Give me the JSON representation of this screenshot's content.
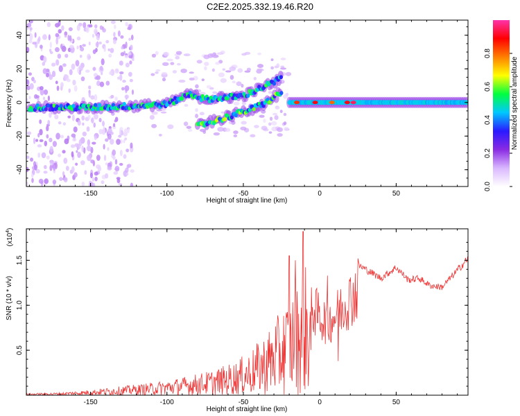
{
  "title": "C2E2.2025.332.19.46.R20",
  "chart_data": [
    {
      "type": "heatmap",
      "xlabel": "Height of straight line (km)",
      "ylabel": "Frequency (Hz)",
      "xlim": [
        -192,
        97
      ],
      "ylim": [
        -50,
        49
      ],
      "x_ticks": [
        -150,
        -100,
        -50,
        0,
        50
      ],
      "y_ticks": [
        -40,
        -20,
        0,
        20,
        40
      ],
      "colorbar": {
        "label": "Normalized spectral amplitude",
        "range": [
          0,
          1
        ],
        "ticks": [
          "0.0",
          "0.2",
          "0.4",
          "0.6",
          "0.8"
        ],
        "tick_values": [
          0,
          0.2,
          0.4,
          0.6,
          0.8
        ],
        "stops": [
          "#ffffff",
          "#d9b7ff",
          "#8a2be2",
          "#2a1aff",
          "#00c8ff",
          "#00ff40",
          "#ffff00",
          "#ff8000",
          "#ff0000",
          "#ff33aa"
        ]
      },
      "ridges": [
        {
          "name": "main",
          "points": [
            [
              -190,
              -3
            ],
            [
              -150,
              -3
            ],
            [
              -120,
              -2
            ],
            [
              -100,
              -1
            ],
            [
              -85,
              5
            ],
            [
              -75,
              2
            ],
            [
              -60,
              3
            ],
            [
              -50,
              4
            ],
            [
              -40,
              8
            ],
            [
              -30,
              12
            ],
            [
              -25,
              15
            ]
          ],
          "amp": 0.45
        },
        {
          "name": "lower",
          "points": [
            [
              -80,
              -14
            ],
            [
              -65,
              -10
            ],
            [
              -55,
              -7
            ],
            [
              -45,
              -4
            ],
            [
              -35,
              0
            ],
            [
              -25,
              6
            ]
          ],
          "amp": 0.5
        },
        {
          "name": "stable",
          "points": [
            [
              -20,
              0
            ],
            [
              0,
              0
            ],
            [
              20,
              0
            ],
            [
              50,
              0
            ],
            [
              97,
              0
            ]
          ],
          "amp": 0.6
        }
      ]
    },
    {
      "type": "line",
      "xlabel": "Height of straight line (km)",
      "ylabel": "SNR (10 * v/v)",
      "scale_label": "(x10",
      "scale_exp": "4",
      "scale_close": ")",
      "xlim": [
        -192,
        97
      ],
      "ylim": [
        0,
        1.85
      ],
      "x_ticks": [
        -150,
        -100,
        -50,
        0,
        50
      ],
      "y_ticks": [
        0.5,
        1.0,
        1.5
      ],
      "series_color": "#ee3333",
      "envelope": [
        [
          -192,
          0.02
        ],
        [
          -170,
          0.03
        ],
        [
          -150,
          0.06
        ],
        [
          -130,
          0.1
        ],
        [
          -110,
          0.14
        ],
        [
          -90,
          0.2
        ],
        [
          -70,
          0.28
        ],
        [
          -55,
          0.38
        ],
        [
          -45,
          0.5
        ],
        [
          -35,
          0.7
        ],
        [
          -25,
          0.95
        ],
        [
          -15,
          1.25
        ],
        [
          -10,
          1.5
        ],
        [
          -5,
          1.2
        ],
        [
          0,
          1.1
        ],
        [
          5,
          1.0
        ],
        [
          12,
          1.15
        ],
        [
          18,
          1.3
        ],
        [
          25,
          1.45
        ],
        [
          30,
          1.4
        ],
        [
          40,
          1.3
        ],
        [
          50,
          1.42
        ],
        [
          58,
          1.28
        ],
        [
          65,
          1.3
        ],
        [
          72,
          1.22
        ],
        [
          80,
          1.2
        ],
        [
          88,
          1.35
        ],
        [
          97,
          1.52
        ]
      ],
      "spikes": [
        {
          "x": -11,
          "y": 1.82
        },
        {
          "x": -20,
          "y": 1.55
        },
        {
          "x": -16,
          "y": 1.5
        },
        {
          "x": 12,
          "y": 0.38
        },
        {
          "x": 5,
          "y": 1.33
        },
        {
          "x": 25,
          "y": 1.52
        }
      ]
    }
  ]
}
